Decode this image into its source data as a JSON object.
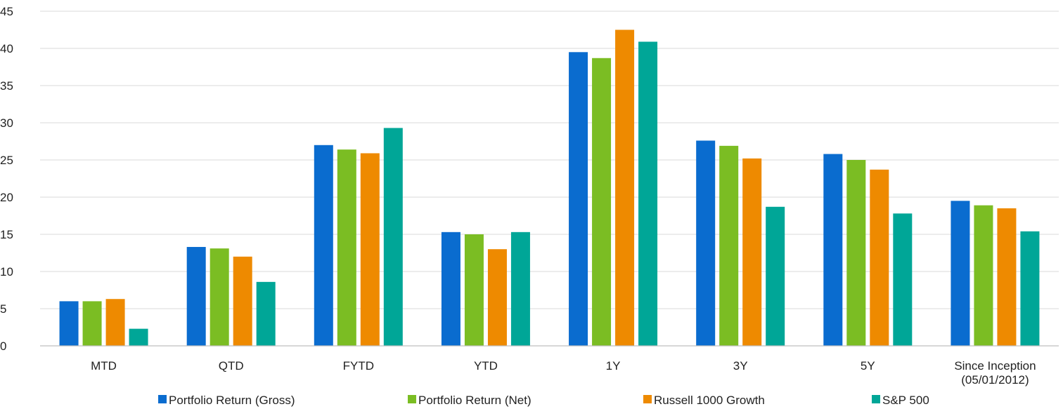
{
  "chart_data": {
    "type": "bar",
    "categories": [
      "MTD",
      "QTD",
      "FYTD",
      "YTD",
      "1Y",
      "3Y",
      "5Y",
      "Since Inception\n(05/01/2012)"
    ],
    "series": [
      {
        "name": "Portfolio Return (Gross)",
        "color": "#0a6ccf",
        "values": [
          6.0,
          13.3,
          27.0,
          15.3,
          39.5,
          27.6,
          25.8,
          19.5
        ]
      },
      {
        "name": "Portfolio Return (Net)",
        "color": "#7bbd23",
        "values": [
          6.0,
          13.1,
          26.4,
          15.0,
          38.7,
          26.9,
          25.0,
          18.9
        ]
      },
      {
        "name": "Russell 1000 Growth",
        "color": "#ee8a00",
        "values": [
          6.3,
          12.0,
          25.9,
          13.0,
          42.5,
          25.2,
          23.7,
          18.5
        ]
      },
      {
        "name": "S&P 500",
        "color": "#00a697",
        "values": [
          2.3,
          8.6,
          29.3,
          15.3,
          40.9,
          18.7,
          17.8,
          15.4
        ]
      }
    ],
    "ylim": [
      0,
      45
    ],
    "yticks": [
      0,
      5,
      10,
      15,
      20,
      25,
      30,
      35,
      40,
      45
    ],
    "grid": true,
    "legend_position": "bottom"
  }
}
